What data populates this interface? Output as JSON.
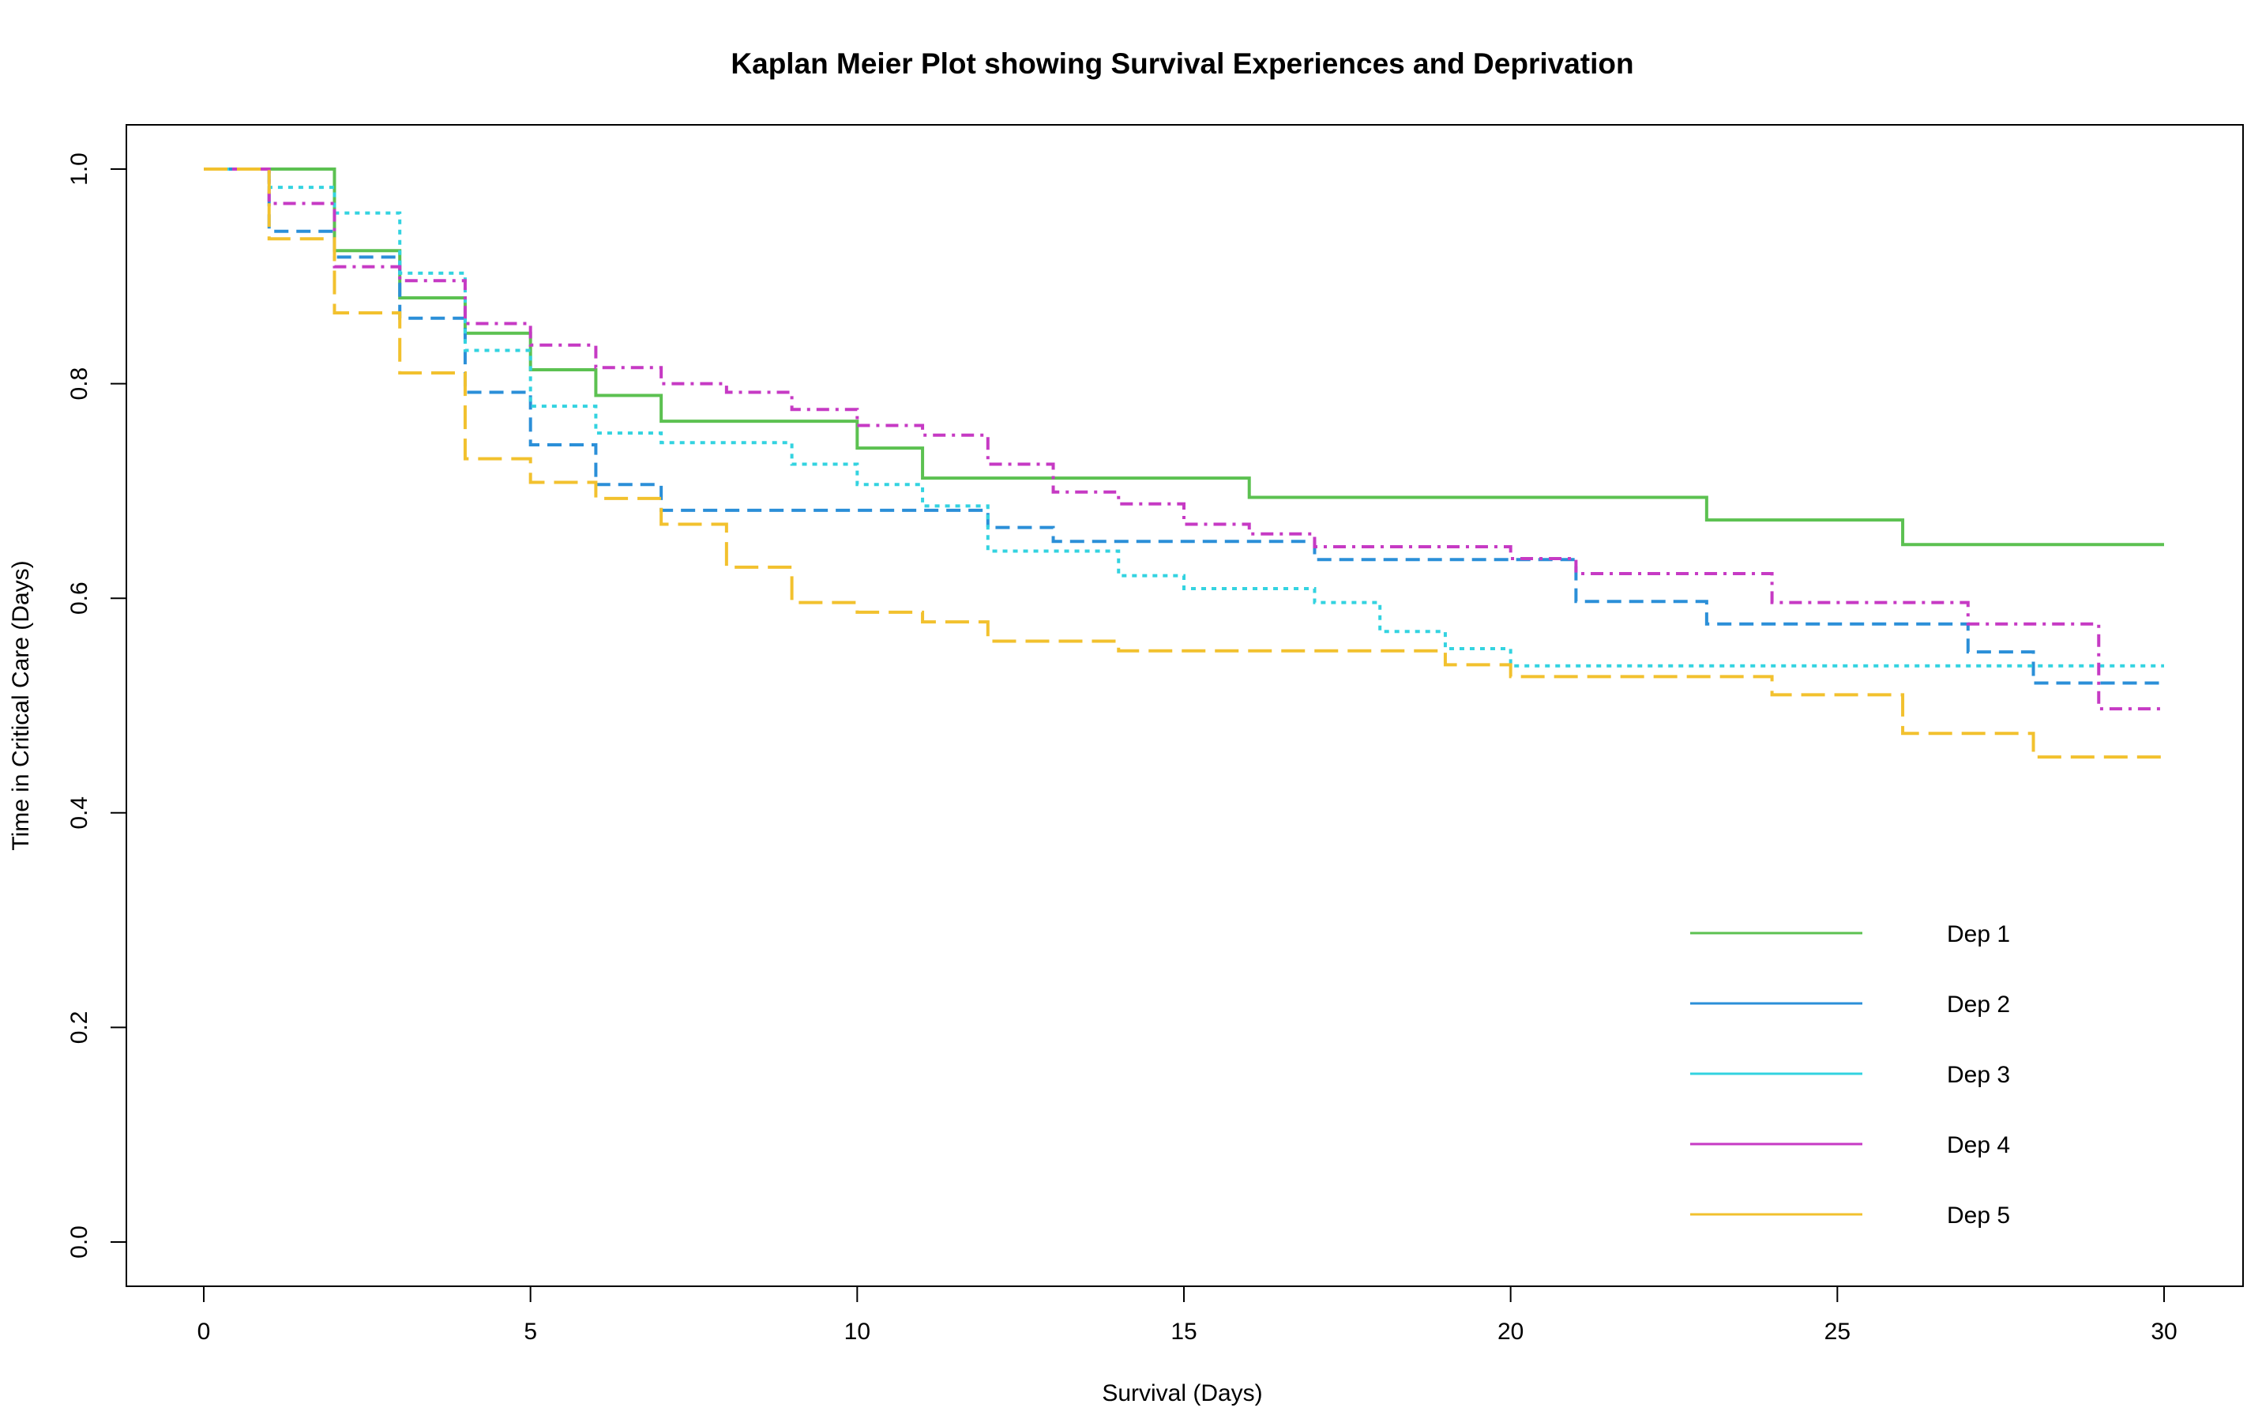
{
  "chart_data": {
    "type": "line",
    "step": true,
    "title": "Kaplan Meier Plot showing Survival Experiences and Deprivation",
    "xlabel": "Survival (Days)",
    "ylabel": "Time in Critical Care (Days)",
    "xlim": [
      0,
      30
    ],
    "ylim": [
      0,
      1
    ],
    "xticks": [
      "0",
      "5",
      "10",
      "15",
      "20",
      "25",
      "30"
    ],
    "yticks": [
      "0.0",
      "0.2",
      "0.4",
      "0.6",
      "0.8",
      "1.0"
    ],
    "grid": false,
    "legend_position": "bottom-right",
    "series": [
      {
        "name": "Dep 1",
        "color": "#5cc151",
        "dash": "solid",
        "points": [
          [
            0,
            1.0
          ],
          [
            2,
            0.924
          ],
          [
            3,
            0.88
          ],
          [
            4,
            0.847
          ],
          [
            5,
            0.813
          ],
          [
            6,
            0.789
          ],
          [
            7,
            0.765
          ],
          [
            10,
            0.74
          ],
          [
            11,
            0.712
          ],
          [
            16,
            0.694
          ],
          [
            23,
            0.673
          ],
          [
            26,
            0.65
          ],
          [
            30,
            0.65
          ]
        ]
      },
      {
        "name": "Dep 2",
        "color": "#2b8fd8",
        "dash": "dashed",
        "points": [
          [
            0,
            1.0
          ],
          [
            1,
            0.942
          ],
          [
            2,
            0.918
          ],
          [
            3,
            0.861
          ],
          [
            4,
            0.792
          ],
          [
            5,
            0.743
          ],
          [
            6,
            0.706
          ],
          [
            7,
            0.682
          ],
          [
            12,
            0.666
          ],
          [
            13,
            0.653
          ],
          [
            17,
            0.636
          ],
          [
            21,
            0.597
          ],
          [
            23,
            0.576
          ],
          [
            27,
            0.55
          ],
          [
            28,
            0.521
          ],
          [
            30,
            0.521
          ]
        ]
      },
      {
        "name": "Dep 3",
        "color": "#33d3e0",
        "dash": "dotted",
        "points": [
          [
            0,
            1.0
          ],
          [
            1,
            0.983
          ],
          [
            2,
            0.959
          ],
          [
            3,
            0.903
          ],
          [
            4,
            0.831
          ],
          [
            5,
            0.779
          ],
          [
            6,
            0.754
          ],
          [
            7,
            0.745
          ],
          [
            9,
            0.725
          ],
          [
            10,
            0.706
          ],
          [
            11,
            0.686
          ],
          [
            12,
            0.644
          ],
          [
            14,
            0.621
          ],
          [
            15,
            0.609
          ],
          [
            17,
            0.596
          ],
          [
            18,
            0.569
          ],
          [
            19,
            0.553
          ],
          [
            20,
            0.537
          ],
          [
            30,
            0.537
          ]
        ]
      },
      {
        "name": "Dep 4",
        "color": "#c63ac4",
        "dash": "dashdot",
        "points": [
          [
            0,
            1.0
          ],
          [
            1,
            0.968
          ],
          [
            2,
            0.909
          ],
          [
            3,
            0.896
          ],
          [
            4,
            0.856
          ],
          [
            5,
            0.836
          ],
          [
            6,
            0.815
          ],
          [
            7,
            0.8
          ],
          [
            8,
            0.792
          ],
          [
            9,
            0.776
          ],
          [
            10,
            0.761
          ],
          [
            11,
            0.752
          ],
          [
            12,
            0.725
          ],
          [
            13,
            0.699
          ],
          [
            14,
            0.688
          ],
          [
            15,
            0.669
          ],
          [
            16,
            0.66
          ],
          [
            17,
            0.648
          ],
          [
            20,
            0.637
          ],
          [
            21,
            0.623
          ],
          [
            24,
            0.596
          ],
          [
            27,
            0.576
          ],
          [
            29,
            0.497
          ],
          [
            30,
            0.497
          ]
        ]
      },
      {
        "name": "Dep 5",
        "color": "#f2c12e",
        "dash": "longdash",
        "points": [
          [
            0,
            1.0
          ],
          [
            1,
            0.935
          ],
          [
            2,
            0.866
          ],
          [
            3,
            0.81
          ],
          [
            4,
            0.73
          ],
          [
            5,
            0.708
          ],
          [
            6,
            0.693
          ],
          [
            7,
            0.669
          ],
          [
            8,
            0.629
          ],
          [
            9,
            0.596
          ],
          [
            10,
            0.587
          ],
          [
            11,
            0.578
          ],
          [
            12,
            0.56
          ],
          [
            14,
            0.551
          ],
          [
            19,
            0.538
          ],
          [
            20,
            0.527
          ],
          [
            24,
            0.51
          ],
          [
            26,
            0.474
          ],
          [
            28,
            0.452
          ],
          [
            30,
            0.452
          ]
        ]
      }
    ]
  }
}
